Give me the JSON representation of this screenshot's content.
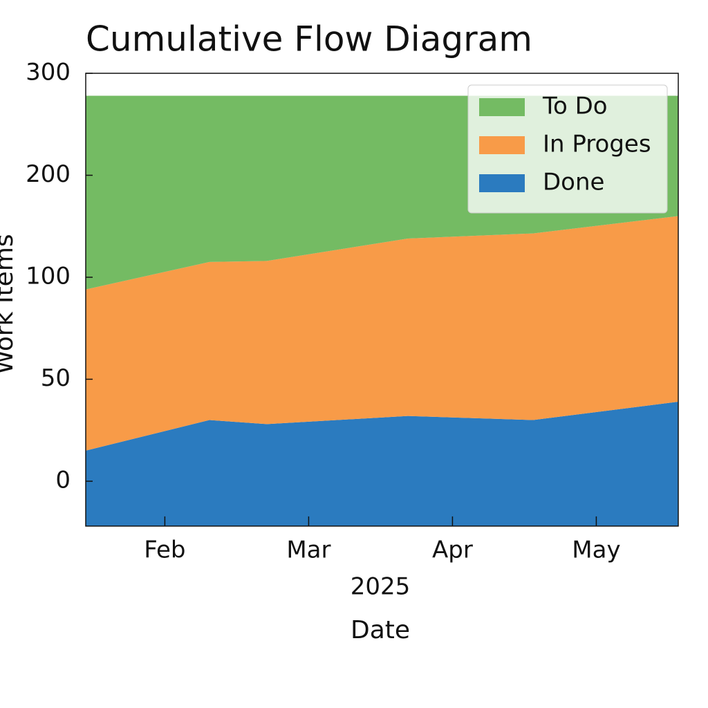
{
  "chart_data": {
    "type": "stacked_area",
    "title": "Cumulative Flow Diagram",
    "x_label": "Date",
    "x_offset_label": "2025",
    "y_label": "Work Items",
    "x": [
      1.45,
      2.31,
      2.71,
      3.69,
      4.56,
      5.57
    ],
    "xlim": [
      1.45,
      5.57
    ],
    "xticks": [
      {
        "value": 2,
        "label": "Feb"
      },
      {
        "value": 3,
        "label": "Mar"
      },
      {
        "value": 4,
        "label": "Apr"
      },
      {
        "value": 5,
        "label": "May"
      }
    ],
    "ylim": [
      -22,
      300
    ],
    "yticks": [
      0,
      50,
      100,
      200,
      300
    ],
    "legend": "upper right",
    "series": [
      {
        "name": "Done",
        "color": "#2b7bbf",
        "values": [
          37,
          52,
          50,
          54,
          52,
          61
        ]
      },
      {
        "name": "In Proges",
        "color": "#f89b48",
        "values": [
          79,
          85,
          88,
          106,
          113,
          121
        ]
      },
      {
        "name": "To Do",
        "color": "#74bb63",
        "values": [
          184,
          163,
          162,
          140,
          135,
          118
        ]
      }
    ]
  }
}
